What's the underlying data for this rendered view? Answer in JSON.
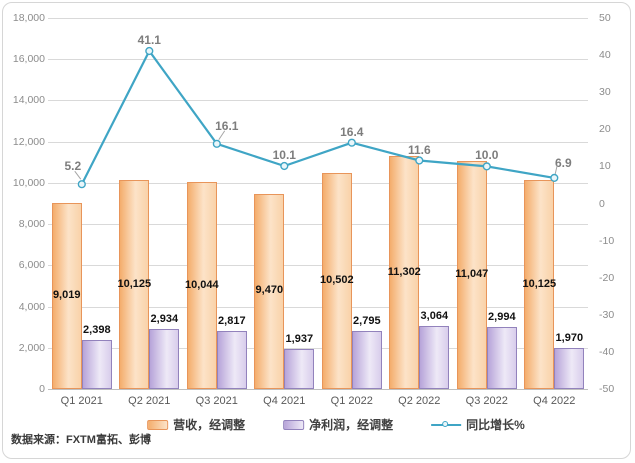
{
  "source_note": "数据来源：FXTM富拓、彭博",
  "legend": [
    {
      "label": "营收，经调整",
      "swatch": "orange-bar-swatch",
      "color": "#ED9C55"
    },
    {
      "label": "净利润，经调整",
      "swatch": "purple-bar-swatch",
      "color": "#9B8CC4"
    },
    {
      "label": "同比增长%",
      "swatch": "teal-line-swatch",
      "color": "#3FA5C5"
    }
  ],
  "chart_data": {
    "type": "bar+line",
    "categories": [
      "Q1 2021",
      "Q2 2021",
      "Q3 2021",
      "Q4 2021",
      "Q1 2022",
      "Q2 2022",
      "Q3 2022",
      "Q4 2022"
    ],
    "series": [
      {
        "name": "营收，经调整",
        "type": "bar",
        "axis": "left",
        "color": "#ED9C55",
        "values": [
          9019,
          10125,
          10044,
          9470,
          10502,
          11302,
          11047,
          10125
        ]
      },
      {
        "name": "净利润，经调整",
        "type": "bar",
        "axis": "left",
        "color": "#9B8CC4",
        "values": [
          2398,
          2934,
          2817,
          1937,
          2795,
          3064,
          2994,
          1970
        ]
      },
      {
        "name": "同比增长%",
        "type": "line",
        "axis": "right",
        "color": "#3FA5C5",
        "values": [
          5.2,
          41.1,
          16.1,
          10.1,
          16.4,
          11.6,
          10.0,
          6.9
        ]
      }
    ],
    "y_left": {
      "min": 0,
      "max": 18000,
      "step": 2000
    },
    "y_right": {
      "min": -50,
      "max": 50,
      "step": 10
    },
    "grid": "horizontal",
    "legend_position": "bottom",
    "data_labels": true
  }
}
